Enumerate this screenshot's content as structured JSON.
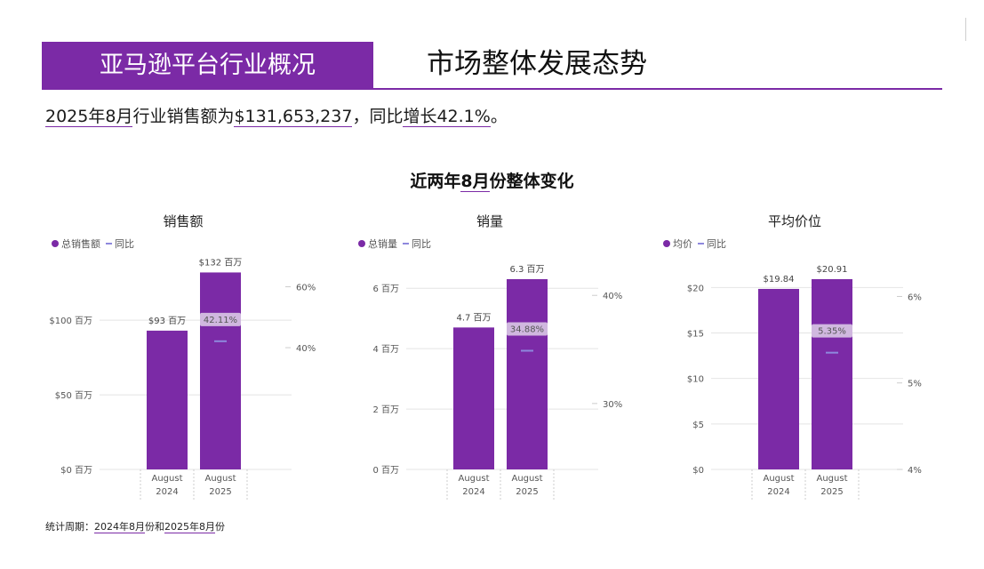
{
  "header": {
    "title": "亚马逊平台行业概况",
    "subtitle": "市场整体发展态势"
  },
  "summary": {
    "p1": "2025年8月",
    "p2": "行业销售额为",
    "p3": "$131,653,237",
    "p4": "，同比",
    "p5": "增长42.1%",
    "p6": "。"
  },
  "section": {
    "p1": "近两年",
    "p2": "8月",
    "p3": "份整体变化"
  },
  "footnote": {
    "p1": "统计周期：",
    "p2": "2024年8月",
    "p3": "份和",
    "p4": "2025年8月",
    "p5": "份"
  },
  "colors": {
    "bar": "#7B2AA6",
    "yoy": "#8E88DD",
    "grid": "#E4E4E4",
    "label_bg": "#D9C8E6"
  },
  "chart_data": [
    {
      "type": "bar",
      "title": "销售额",
      "legend": {
        "bar": "总销售额",
        "line": "同比",
        "position": "top-left"
      },
      "categories": [
        [
          "August",
          "2024"
        ],
        [
          "August",
          "2025"
        ]
      ],
      "series": [
        {
          "name": "总销售额",
          "values": [
            93,
            132
          ],
          "labels": [
            "$93 百万",
            "$132 百万"
          ]
        },
        {
          "name": "同比",
          "values": [
            null,
            42.11
          ],
          "labels": [
            "",
            "42.11%"
          ]
        }
      ],
      "ylim": [
        0,
        127.5
      ],
      "yticks": [
        0,
        50,
        100
      ],
      "ytick_labels": [
        "$0 百万",
        "$50 百万",
        "$100 百万"
      ],
      "y2lim": [
        0,
        62.5
      ],
      "y2ticks": [
        40,
        60
      ],
      "y2tick_labels": [
        "40%",
        "60%"
      ]
    },
    {
      "type": "bar",
      "title": "销量",
      "legend": {
        "bar": "总销量",
        "line": "同比",
        "position": "top-left"
      },
      "categories": [
        [
          "August",
          "2024"
        ],
        [
          "August",
          "2025"
        ]
      ],
      "series": [
        {
          "name": "总销量",
          "values": [
            4.7,
            6.3
          ],
          "labels": [
            "4.7 百万",
            "6.3 百万"
          ]
        },
        {
          "name": "同比",
          "values": [
            null,
            34.88
          ],
          "labels": [
            "",
            "34.88%"
          ]
        }
      ],
      "ylim": [
        0,
        6.3
      ],
      "yticks": [
        0,
        2,
        4,
        6
      ],
      "ytick_labels": [
        "0 百万",
        "2 百万",
        "4 百万",
        "6 百万"
      ],
      "y2lim": [
        23.9,
        41.5
      ],
      "y2ticks": [
        30,
        40
      ],
      "y2tick_labels": [
        "30%",
        "40%"
      ]
    },
    {
      "type": "bar",
      "title": "平均价位",
      "legend": {
        "bar": "均价",
        "line": "同比",
        "position": "top-left"
      },
      "categories": [
        [
          "August",
          "2024"
        ],
        [
          "August",
          "2025"
        ]
      ],
      "series": [
        {
          "name": "均价",
          "values": [
            19.84,
            20.91
          ],
          "labels": [
            "$19.84",
            "$20.91"
          ]
        },
        {
          "name": "同比",
          "values": [
            null,
            5.35
          ],
          "labels": [
            "",
            "5.35%"
          ]
        }
      ],
      "ylim": [
        0,
        20.91
      ],
      "yticks": [
        0,
        5,
        10,
        15,
        20
      ],
      "ytick_labels": [
        "$0",
        "$5",
        "$10",
        "$15",
        "$20"
      ],
      "y2lim": [
        4,
        6.2
      ],
      "y2ticks": [
        4,
        5,
        6
      ],
      "y2tick_labels": [
        "4%",
        "5%",
        "6%"
      ]
    }
  ]
}
